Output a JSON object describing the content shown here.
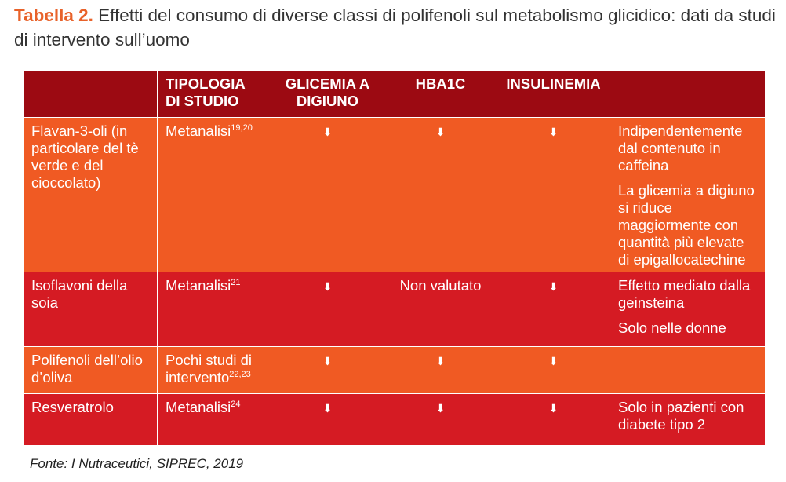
{
  "title": {
    "label": "Tabella 2.",
    "text": "Effetti del consumo di diverse classi di polifenoli sul metabolismo glicidico: dati da studi di intervento sull’uomo"
  },
  "table": {
    "headers": [
      "",
      "TIPOLOGIA DI STUDIO",
      "GLICEMIA A DIGIUNO",
      "HBA1C",
      "INSULINEMIA",
      ""
    ],
    "arrow_symbol": "⬇",
    "rows": [
      {
        "name": "Flavan-3-oli (in particolare del tè verde e del cioccolato)",
        "study": "Metanalisi",
        "study_ref": "19,20",
        "glicemia": "⬇",
        "hba1c": "⬇",
        "insulinemia": "⬇",
        "notes": [
          "Indipendentemente dal contenuto in caffeina",
          "La glicemia a digiuno si riduce maggiormente con quantità più elevate di epigallocatechine"
        ]
      },
      {
        "name": "Isoflavoni della soia",
        "study": "Metanalisi",
        "study_ref": "21",
        "glicemia": "⬇",
        "hba1c": "Non valutato",
        "insulinemia": "⬇",
        "notes": [
          "Effetto mediato dalla geinsteina",
          "Solo nelle donne"
        ]
      },
      {
        "name": "Polifenoli dell’olio d’oliva",
        "study": "Pochi studi di intervento",
        "study_ref": "22,23",
        "glicemia": "⬇",
        "hba1c": "⬇",
        "insulinemia": "⬇",
        "notes": []
      },
      {
        "name": "Resveratrolo",
        "study": "Metanalisi",
        "study_ref": "24",
        "glicemia": "⬇",
        "hba1c": "⬇",
        "insulinemia": "⬇",
        "notes": [
          "Solo in pazienti con diabete tipo 2"
        ]
      }
    ]
  },
  "source": "Fonte: I Nutraceutici, SIPREC, 2019",
  "colors": {
    "title_label": "#e8622a",
    "header_bg": "#9c0a12",
    "row_orange": "#f05a23",
    "row_red": "#d51b23"
  }
}
